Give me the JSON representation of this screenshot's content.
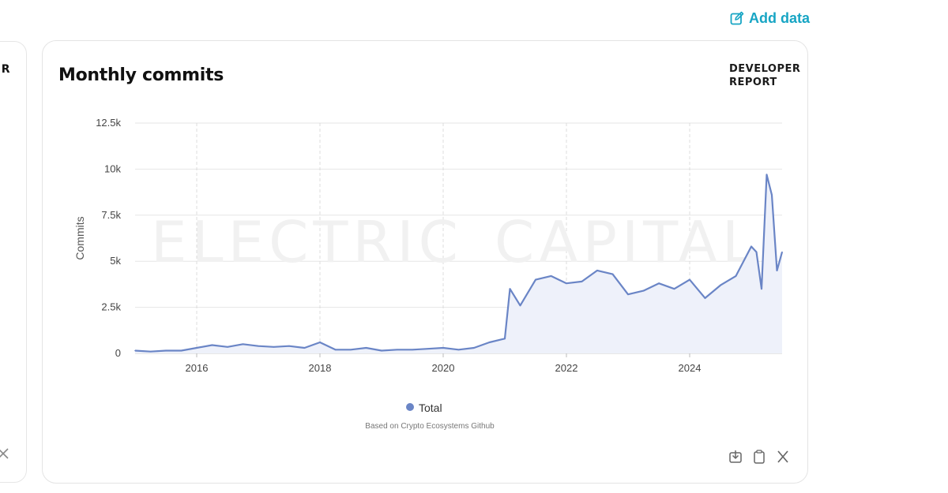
{
  "toolbar": {
    "add_data_label": "Add data",
    "add_data_icon": "edit-square-icon"
  },
  "side_card": {
    "label": "DEVELOPER"
  },
  "card": {
    "title": "Monthly commits",
    "brand_line1": "DEVELOPER",
    "brand_line2": "REPORT",
    "watermark_left": "ELECTRIC",
    "watermark_right": "CAPITAL",
    "source_note": "Based on Crypto Ecosystems Github",
    "footer_icons": [
      "download-icon",
      "copy-icon",
      "x-share-icon"
    ]
  },
  "colors": {
    "accent": "#17a5c4",
    "series": "#6a85c6",
    "area": "#eef1fa"
  },
  "chart_data": {
    "type": "area",
    "title": "Monthly commits",
    "ylabel": "Commits",
    "xlabel": "",
    "xlim": [
      "2015-01",
      "2025-07"
    ],
    "ylim": [
      0,
      12500
    ],
    "x_ticks": [
      2016,
      2018,
      2020,
      2022,
      2024
    ],
    "y_ticks": [
      {
        "value": 0,
        "label": "0"
      },
      {
        "value": 2500,
        "label": "2.5k"
      },
      {
        "value": 5000,
        "label": "5k"
      },
      {
        "value": 7500,
        "label": "7.5k"
      },
      {
        "value": 10000,
        "label": "10k"
      },
      {
        "value": 12500,
        "label": "12.5k"
      }
    ],
    "grid": true,
    "legend": "bottom",
    "series": [
      {
        "name": "Total",
        "x": [
          "2015-01",
          "2015-04",
          "2015-07",
          "2015-10",
          "2016-01",
          "2016-04",
          "2016-07",
          "2016-10",
          "2017-01",
          "2017-04",
          "2017-07",
          "2017-10",
          "2018-01",
          "2018-04",
          "2018-07",
          "2018-10",
          "2019-01",
          "2019-04",
          "2019-07",
          "2019-10",
          "2020-01",
          "2020-04",
          "2020-07",
          "2020-10",
          "2021-01",
          "2021-02",
          "2021-04",
          "2021-07",
          "2021-10",
          "2022-01",
          "2022-04",
          "2022-07",
          "2022-10",
          "2023-01",
          "2023-04",
          "2023-07",
          "2023-10",
          "2024-01",
          "2024-04",
          "2024-07",
          "2024-10",
          "2025-01",
          "2025-02",
          "2025-03",
          "2025-04",
          "2025-05",
          "2025-06",
          "2025-07"
        ],
        "y": [
          150,
          100,
          150,
          150,
          300,
          450,
          350,
          500,
          400,
          350,
          400,
          300,
          600,
          200,
          200,
          300,
          150,
          200,
          200,
          250,
          300,
          200,
          300,
          600,
          800,
          3500,
          2600,
          4000,
          4200,
          3800,
          3900,
          4500,
          4300,
          3200,
          3400,
          3800,
          3500,
          4000,
          3000,
          3700,
          4200,
          5800,
          5500,
          3500,
          9700,
          8600,
          4500,
          5500
        ]
      }
    ]
  }
}
